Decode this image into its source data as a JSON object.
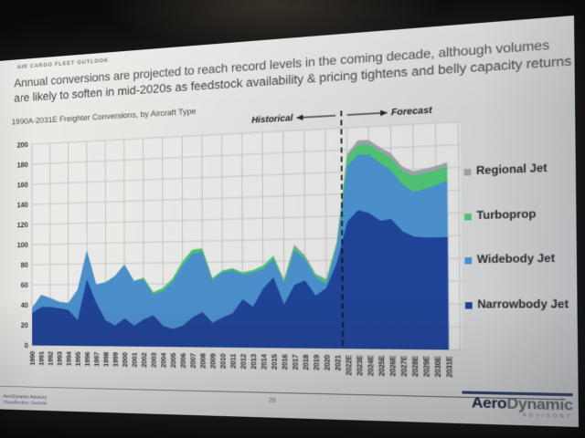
{
  "slide": {
    "eyebrow": "AIR CARGO FLEET OUTLOOK",
    "title_line1": "Annual conversions are projected to reach record levels in the coming decade, although volumes",
    "title_line2": "are likely to soften in mid-2020s as feedstock availability & pricing tightens and belly capacity returns",
    "chart_subtitle": "1990A-2031E Freighter Conversions, by Aircraft Type",
    "annotations": {
      "historical": "Historical",
      "forecast": "Forecast"
    },
    "footer": {
      "company": "AeroDynamic Advisory",
      "classification": "Classification: General",
      "page": "28",
      "logo_aero": "Aero",
      "logo_dynamic": "Dynamic",
      "logo_sub": "ADVISORY"
    }
  },
  "chart_data": {
    "type": "area",
    "stacked": true,
    "title": "1990A-2031E Freighter Conversions, by Aircraft Type",
    "ylim": [
      0,
      200
    ],
    "ytick": 20,
    "grid": true,
    "legend_position": "right",
    "divider_index": 32,
    "categories": [
      "1990",
      "1991",
      "1992",
      "1993",
      "1994",
      "1995",
      "1996",
      "1997",
      "1998",
      "1999",
      "2000",
      "2001",
      "2002",
      "2003",
      "2004",
      "2005",
      "2006",
      "2007",
      "2008",
      "2009",
      "2010",
      "2011",
      "2012",
      "2013",
      "2014",
      "2015",
      "2016",
      "2017",
      "2018",
      "2019",
      "2020",
      "2021",
      "2022E",
      "2023E",
      "2024E",
      "2025E",
      "2026E",
      "2027E",
      "2028E",
      "2029E",
      "2030E",
      "2031E"
    ],
    "series": [
      {
        "name": "Narrowbody Jet",
        "color": "#1f4396",
        "values": [
          32,
          38,
          38,
          37,
          35,
          25,
          65,
          42,
          25,
          20,
          27,
          20,
          26,
          30,
          20,
          17,
          20,
          28,
          33,
          23,
          28,
          32,
          45,
          38,
          55,
          65,
          40,
          58,
          62,
          48,
          55,
          78,
          115,
          125,
          122,
          115,
          116,
          105,
          100,
          99,
          99,
          99
        ]
      },
      {
        "name": "Widebody Jet",
        "color": "#4b8fca",
        "values": [
          5,
          12,
          9,
          6,
          7,
          30,
          28,
          18,
          37,
          48,
          52,
          43,
          38,
          20,
          33,
          45,
          57,
          60,
          57,
          40,
          42,
          40,
          23,
          32,
          18,
          17,
          20,
          32,
          20,
          17,
          4,
          15,
          50,
          50,
          53,
          52,
          44,
          42,
          40,
          43,
          46,
          50
        ]
      },
      {
        "name": "Turboprop",
        "color": "#4dc072",
        "values": [
          0,
          0,
          0,
          0,
          0,
          0,
          0,
          0,
          0,
          0,
          0,
          0,
          2,
          2,
          3,
          3,
          4,
          4,
          3,
          2,
          2,
          2,
          2,
          2,
          3,
          3,
          2,
          3,
          2,
          2,
          3,
          3,
          8,
          9,
          9,
          10,
          11,
          12,
          14,
          14,
          13,
          12
        ]
      },
      {
        "name": "Regional Jet",
        "color": "#9aa0a5",
        "values": [
          0,
          0,
          0,
          0,
          0,
          0,
          0,
          0,
          0,
          0,
          0,
          0,
          0,
          0,
          0,
          0,
          0,
          0,
          0,
          0,
          0,
          0,
          0,
          0,
          0,
          0,
          1,
          2,
          1,
          1,
          1,
          1,
          3,
          4,
          4,
          4,
          4,
          4,
          4,
          4,
          4,
          4
        ]
      }
    ]
  }
}
